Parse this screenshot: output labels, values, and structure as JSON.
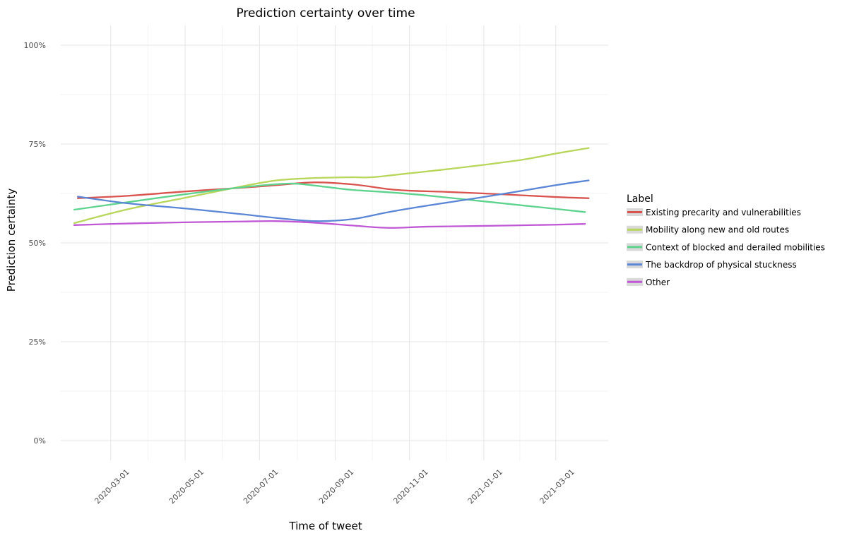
{
  "chart_data": {
    "type": "line",
    "title": "Prediction certainty over time",
    "xlabel": "Time of tweet",
    "ylabel": "Prediction certainty",
    "ylim": [
      0,
      100
    ],
    "xlim": [
      "2020-01-20",
      "2021-04-13"
    ],
    "y_ticks": [
      {
        "value": 0,
        "label": "0%"
      },
      {
        "value": 25,
        "label": "25%"
      },
      {
        "value": 50,
        "label": "50%"
      },
      {
        "value": 75,
        "label": "75%"
      },
      {
        "value": 100,
        "label": "100%"
      }
    ],
    "x_ticks": [
      {
        "value": "2020-03-01",
        "label": "2020-03-01"
      },
      {
        "value": "2020-05-01",
        "label": "2020-05-01"
      },
      {
        "value": "2020-07-01",
        "label": "2020-07-01"
      },
      {
        "value": "2020-09-01",
        "label": "2020-09-01"
      },
      {
        "value": "2020-11-01",
        "label": "2020-11-01"
      },
      {
        "value": "2021-01-01",
        "label": "2021-01-01"
      },
      {
        "value": "2021-03-01",
        "label": "2021-03-01"
      }
    ],
    "grid": true,
    "legend": {
      "title": "Label",
      "position": "right"
    },
    "series": [
      {
        "name": "Existing precarity and vulnerabilities",
        "color": "#d9534f",
        "x": [
          "2020-02-03",
          "2020-03-15",
          "2020-05-01",
          "2020-06-15",
          "2020-07-15",
          "2020-08-15",
          "2020-09-15",
          "2020-10-15",
          "2020-11-01",
          "2020-12-01",
          "2021-01-15",
          "2021-03-01",
          "2021-03-28"
        ],
        "y": [
          61.3,
          61.9,
          63.0,
          63.9,
          64.6,
          65.3,
          64.8,
          63.6,
          63.2,
          62.9,
          62.3,
          61.6,
          61.3
        ]
      },
      {
        "name": "Mobility along new and old routes",
        "color": "#b8d65a",
        "x": [
          "2020-01-31",
          "2020-03-15",
          "2020-05-01",
          "2020-06-15",
          "2020-07-15",
          "2020-08-15",
          "2020-09-15",
          "2020-10-01",
          "2020-11-01",
          "2020-12-15",
          "2021-02-01",
          "2021-03-01",
          "2021-03-28"
        ],
        "y": [
          55.0,
          58.5,
          61.4,
          64.2,
          65.8,
          66.4,
          66.6,
          66.6,
          67.6,
          69.1,
          71.0,
          72.6,
          74.0
        ]
      },
      {
        "name": "Context of blocked and derailed mobilities",
        "color": "#5dd38e",
        "x": [
          "2020-01-31",
          "2020-03-15",
          "2020-05-01",
          "2020-06-15",
          "2020-07-25",
          "2020-08-15",
          "2020-09-15",
          "2020-10-15",
          "2020-11-15",
          "2021-01-01",
          "2021-03-01",
          "2021-03-25"
        ],
        "y": [
          58.4,
          60.3,
          62.3,
          64.0,
          65.0,
          64.5,
          63.4,
          62.8,
          62.0,
          60.5,
          58.6,
          57.8
        ]
      },
      {
        "name": "The backdrop of physical stuckness",
        "color": "#5b86d6",
        "x": [
          "2020-02-03",
          "2020-03-15",
          "2020-05-01",
          "2020-06-15",
          "2020-07-15",
          "2020-08-15",
          "2020-09-15",
          "2020-10-15",
          "2020-11-15",
          "2021-01-01",
          "2021-03-01",
          "2021-03-28"
        ],
        "y": [
          61.7,
          60.0,
          58.7,
          57.3,
          56.3,
          55.5,
          56.0,
          57.8,
          59.4,
          61.6,
          64.6,
          65.8
        ]
      },
      {
        "name": "Other",
        "color": "#c058d6",
        "x": [
          "2020-01-31",
          "2020-03-15",
          "2020-05-01",
          "2020-06-15",
          "2020-07-15",
          "2020-08-15",
          "2020-09-15",
          "2020-10-15",
          "2020-11-15",
          "2021-01-01",
          "2021-03-01",
          "2021-03-25"
        ],
        "y": [
          54.5,
          54.9,
          55.2,
          55.4,
          55.5,
          55.1,
          54.4,
          53.8,
          54.1,
          54.3,
          54.6,
          54.8
        ]
      }
    ]
  }
}
